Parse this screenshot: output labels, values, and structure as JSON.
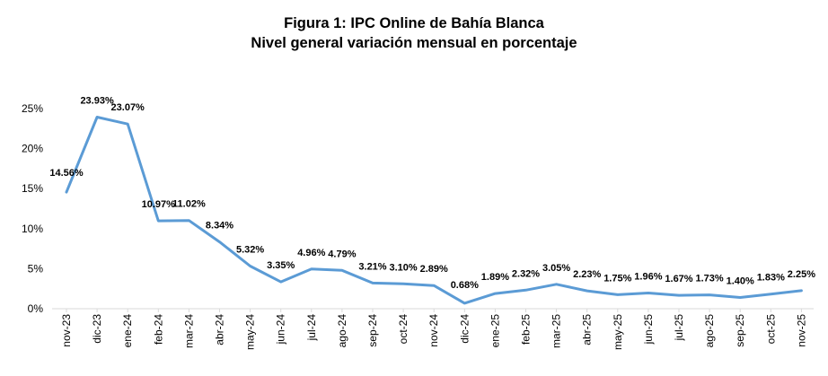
{
  "chart_data": {
    "type": "line",
    "title": "Figura 1: IPC Online de Bahía Blanca",
    "subtitle": "Nivel general variación mensual en porcentaje",
    "xlabel": "",
    "ylabel": "",
    "ylim": [
      0,
      25
    ],
    "yticks": [
      "0%",
      "5%",
      "10%",
      "15%",
      "20%",
      "25%"
    ],
    "grid": false,
    "legend": "none",
    "line_color": "#5B9BD5",
    "categories": [
      "nov-23",
      "dic-23",
      "ene-24",
      "feb-24",
      "mar-24",
      "abr-24",
      "may-24",
      "jun-24",
      "jul-24",
      "ago-24",
      "sep-24",
      "oct-24",
      "nov-24",
      "dic-24",
      "ene-25",
      "feb-25",
      "mar-25",
      "abr-25",
      "may-25",
      "jun-25",
      "jul-25",
      "ago-25",
      "sep-25",
      "oct-25",
      "nov-25"
    ],
    "values": [
      14.56,
      23.93,
      23.07,
      10.97,
      11.02,
      8.34,
      5.32,
      3.35,
      4.96,
      4.79,
      3.21,
      3.1,
      2.89,
      0.68,
      1.89,
      2.32,
      3.05,
      2.23,
      1.75,
      1.96,
      1.67,
      1.73,
      1.4,
      1.83,
      2.25
    ],
    "data_labels": [
      "14.56%",
      "23.93%",
      "23.07%",
      "10.97%",
      "11.02%",
      "8.34%",
      "5.32%",
      "3.35%",
      "4.96%",
      "4.79%",
      "3.21%",
      "3.10%",
      "2.89%",
      "0.68%",
      "1.89%",
      "2.32%",
      "3.05%",
      "2.23%",
      "1.75%",
      "1.96%",
      "1.67%",
      "1.73%",
      "1.40%",
      "1.83%",
      "2.25%"
    ]
  }
}
